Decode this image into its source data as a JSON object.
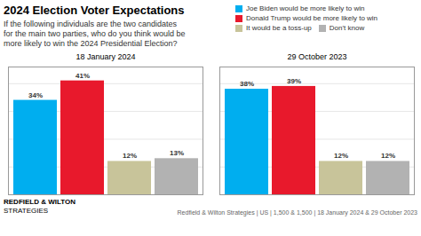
{
  "chart_data": {
    "type": "bar",
    "title": "2024 Election Voter Expectations",
    "subtitle": "If the following individuals are the two candidates\nfor the main two parties, who do you think would be\nmore likely to win the 2024 Presidential Election?",
    "categories": [
      "18 January 2024",
      "29 October 2023"
    ],
    "series": [
      {
        "name": "Joe Biden would be more likely to win",
        "color": "#00AEEF",
        "values": [
          34,
          38
        ],
        "value_labels": [
          "34%",
          "38%"
        ]
      },
      {
        "name": "Donald Trump would be more likely to win",
        "color": "#E8192C",
        "values": [
          41,
          39
        ],
        "value_labels": [
          "41%",
          "39%"
        ]
      },
      {
        "name": "It would be a toss-up",
        "color": "#C8C49A",
        "values": [
          12,
          12
        ],
        "value_labels": [
          "12%",
          "12%"
        ]
      },
      {
        "name": "Don't know",
        "color": "#B2B2B2",
        "values": [
          13,
          12
        ],
        "value_labels": [
          "13%",
          "12%"
        ]
      }
    ],
    "ylim": [
      0,
      46
    ],
    "yticks": [
      10,
      20,
      30,
      40
    ],
    "grid": true,
    "tick_labels": "x",
    "data_labels": true,
    "annotations": [
      "REDFIELD & WILTON",
      "STRATEGIES",
      "Redfield & Wilton Strategies | US | 1,500 & 1,500 | 18 January 2024 & 29 October 2023"
    ]
  }
}
